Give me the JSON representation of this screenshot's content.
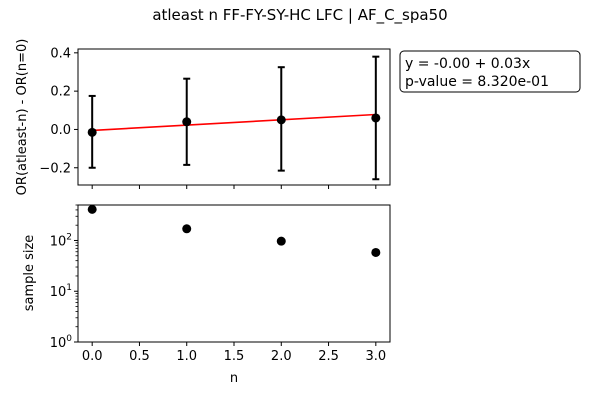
{
  "figure": {
    "title": "atleast n FF-FY-SY-HC LFC | AF_C_spa50"
  },
  "chart_data": [
    {
      "type": "scatter",
      "panel": "top",
      "ylabel": "OR(atleast-n) - OR(n=0)",
      "xlim": [
        -0.15,
        3.15
      ],
      "ylim": [
        -0.29,
        0.42
      ],
      "yticks": [
        -0.2,
        0.0,
        0.2,
        0.4
      ],
      "ytick_labels": [
        "−0.2",
        "0.0",
        "0.2",
        "0.4"
      ],
      "x_tick_labels_visible": false,
      "series": [
        {
          "kind": "points-with-errorbars",
          "color": "#000000",
          "x": [
            0,
            1,
            2,
            3
          ],
          "y": [
            -0.015,
            0.04,
            0.05,
            0.06
          ],
          "err_low": [
            -0.2,
            -0.185,
            -0.215,
            -0.26
          ],
          "err_high": [
            0.175,
            0.265,
            0.325,
            0.38
          ]
        },
        {
          "kind": "fit-line",
          "color": "#ff0000",
          "x": [
            0,
            3
          ],
          "y": [
            -0.005,
            0.078
          ]
        }
      ],
      "annotation": {
        "lines": [
          "y = -0.00 + 0.03x",
          "p-value = 8.320e-01"
        ],
        "placement": "right of plot, top"
      }
    },
    {
      "type": "scatter",
      "panel": "bottom",
      "xlabel": "n",
      "ylabel": "sample size",
      "yscale": "log",
      "xlim": [
        -0.15,
        3.15
      ],
      "ylim": [
        1,
        500
      ],
      "xticks": [
        0.0,
        0.5,
        1.0,
        1.5,
        2.0,
        2.5,
        3.0
      ],
      "xtick_labels": [
        "0.0",
        "0.5",
        "1.0",
        "1.5",
        "2.0",
        "2.5",
        "3.0"
      ],
      "yticks": [
        1,
        10,
        100
      ],
      "ytick_labels": [
        {
          "base": "10",
          "exp": "0"
        },
        {
          "base": "10",
          "exp": "1"
        },
        {
          "base": "10",
          "exp": "2"
        }
      ],
      "series": [
        {
          "kind": "points",
          "color": "#000000",
          "x": [
            0,
            1,
            2,
            3
          ],
          "y": [
            410,
            170,
            97,
            58
          ]
        }
      ]
    }
  ]
}
